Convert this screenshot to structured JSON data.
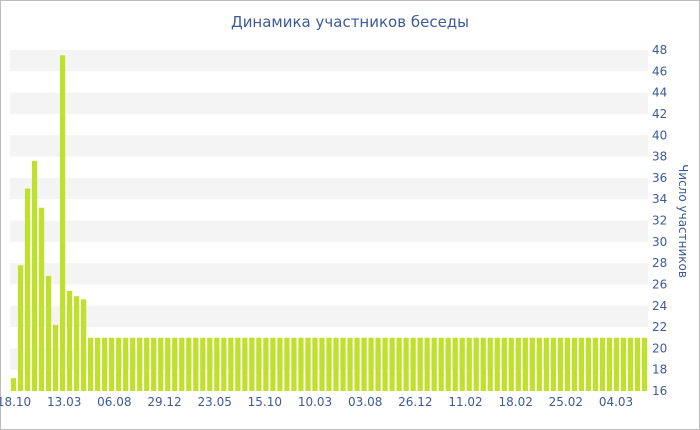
{
  "chart_data": {
    "type": "bar",
    "title": "Динамика участников беседы",
    "xlabel": "",
    "ylabel": "Число участников",
    "ylim": [
      16,
      48
    ],
    "ytick_step": 2,
    "grid": "horizontal alternating bands",
    "bar_color": "#bfe12e",
    "band_color": "#f4f4f4",
    "x_tick_labels": [
      "18.10",
      "13.03",
      "06.08",
      "29.12",
      "23.05",
      "15.10",
      "10.03",
      "03.08",
      "26.12",
      "11.02",
      "18.02",
      "25.02",
      "04.03"
    ],
    "values": [
      17.2,
      27.8,
      35,
      37.6,
      33.2,
      26.8,
      22.2,
      47.5,
      25.4,
      24.9,
      24.6,
      21,
      21,
      21,
      21,
      21,
      21,
      21,
      21,
      21,
      21,
      21,
      21,
      21,
      21,
      21,
      21,
      21,
      21,
      21,
      21,
      21,
      21,
      21,
      21,
      21,
      21,
      21,
      21,
      21,
      21,
      21,
      21,
      21,
      21,
      21,
      21,
      21,
      21,
      21,
      21,
      21,
      21,
      21,
      21,
      21,
      21,
      21,
      21,
      21,
      21,
      21,
      21,
      21,
      21,
      21,
      21,
      21,
      21,
      21,
      21,
      21,
      21,
      21,
      21,
      21,
      21,
      21,
      21,
      21,
      21,
      21,
      21,
      21,
      21,
      21,
      21,
      21,
      21,
      21,
      21
    ]
  }
}
